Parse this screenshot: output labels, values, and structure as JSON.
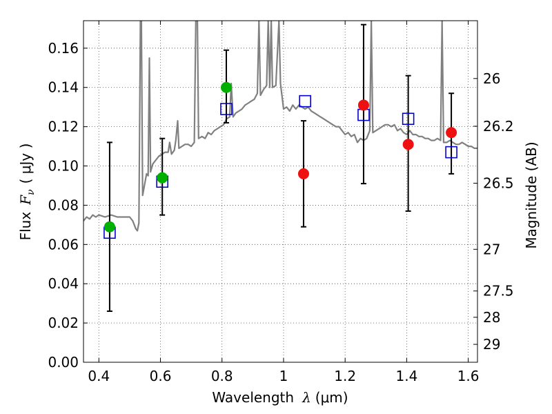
{
  "chart_data": {
    "type": "scatter",
    "xlabel_main": "Wavelength",
    "xlabel_symbol": "λ",
    "xlabel_unit": "(μm)",
    "ylabel_main": "Flux",
    "ylabel_symbol": "F",
    "ylabel_sub": "ν",
    "ylabel_unit": "( μJy )",
    "y2label": "Magnitude (AB)",
    "xlim": [
      0.35,
      1.63
    ],
    "ylim": [
      0.0,
      0.174
    ],
    "xticks": [
      0.4,
      0.6,
      0.8,
      1.0,
      1.2,
      1.4,
      1.6
    ],
    "xtick_labels": [
      "0.4",
      "0.6",
      "0.8",
      "1",
      "1.2",
      "1.4",
      "1.6"
    ],
    "yticks": [
      0.0,
      0.02,
      0.04,
      0.06,
      0.08,
      0.1,
      0.12,
      0.14,
      0.16
    ],
    "ytick_labels": [
      "0.00",
      "0.02",
      "0.04",
      "0.06",
      "0.08",
      "0.10",
      "0.12",
      "0.14",
      "0.16"
    ],
    "y2ticks": [
      {
        "mag": 26,
        "label": "26"
      },
      {
        "mag": 26.2,
        "label": "26.2"
      },
      {
        "mag": 26.5,
        "label": "26.5"
      },
      {
        "mag": 27,
        "label": "27"
      },
      {
        "mag": 27.5,
        "label": "27.5"
      },
      {
        "mag": 28,
        "label": "28"
      },
      {
        "mag": 29,
        "label": "29"
      }
    ],
    "grid": true,
    "colors": {
      "green": "#00b000",
      "red": "#ee1111",
      "blue": "#0000cc",
      "spectrum": "#808080",
      "errorbar": "#000000"
    },
    "measured_points": [
      {
        "x": 0.435,
        "y": 0.069,
        "yerr_low": 0.026,
        "yerr_high": 0.112,
        "color": "green"
      },
      {
        "x": 0.606,
        "y": 0.094,
        "yerr_low": 0.075,
        "yerr_high": 0.114,
        "color": "green"
      },
      {
        "x": 0.814,
        "y": 0.14,
        "yerr_low": 0.122,
        "yerr_high": 0.159,
        "color": "green"
      },
      {
        "x": 1.065,
        "y": 0.096,
        "yerr_low": 0.069,
        "yerr_high": 0.123,
        "color": "red"
      },
      {
        "x": 1.26,
        "y": 0.131,
        "yerr_low": 0.091,
        "yerr_high": 0.172,
        "color": "red"
      },
      {
        "x": 1.405,
        "y": 0.111,
        "yerr_low": 0.077,
        "yerr_high": 0.146,
        "color": "red"
      },
      {
        "x": 1.545,
        "y": 0.117,
        "yerr_low": 0.096,
        "yerr_high": 0.137,
        "color": "red"
      }
    ],
    "model_points": [
      {
        "x": 0.435,
        "y": 0.066
      },
      {
        "x": 0.606,
        "y": 0.092
      },
      {
        "x": 0.814,
        "y": 0.129
      },
      {
        "x": 1.07,
        "y": 0.133
      },
      {
        "x": 1.26,
        "y": 0.126
      },
      {
        "x": 1.405,
        "y": 0.124
      },
      {
        "x": 1.545,
        "y": 0.107
      }
    ],
    "spectrum": [
      [
        0.35,
        0.072
      ],
      [
        0.36,
        0.074
      ],
      [
        0.37,
        0.073
      ],
      [
        0.38,
        0.075
      ],
      [
        0.39,
        0.074
      ],
      [
        0.4,
        0.075
      ],
      [
        0.42,
        0.074
      ],
      [
        0.44,
        0.075
      ],
      [
        0.46,
        0.074
      ],
      [
        0.48,
        0.074
      ],
      [
        0.5,
        0.074
      ],
      [
        0.51,
        0.072
      ],
      [
        0.52,
        0.068
      ],
      [
        0.525,
        0.067
      ],
      [
        0.53,
        0.071
      ],
      [
        0.535,
        0.174
      ],
      [
        0.538,
        0.174
      ],
      [
        0.542,
        0.085
      ],
      [
        0.548,
        0.09
      ],
      [
        0.555,
        0.096
      ],
      [
        0.56,
        0.095
      ],
      [
        0.564,
        0.155
      ],
      [
        0.568,
        0.097
      ],
      [
        0.575,
        0.101
      ],
      [
        0.585,
        0.103
      ],
      [
        0.595,
        0.105
      ],
      [
        0.605,
        0.106
      ],
      [
        0.615,
        0.107
      ],
      [
        0.625,
        0.107
      ],
      [
        0.63,
        0.112
      ],
      [
        0.636,
        0.106
      ],
      [
        0.645,
        0.108
      ],
      [
        0.65,
        0.113
      ],
      [
        0.656,
        0.123
      ],
      [
        0.66,
        0.109
      ],
      [
        0.67,
        0.11
      ],
      [
        0.68,
        0.111
      ],
      [
        0.69,
        0.111
      ],
      [
        0.7,
        0.11
      ],
      [
        0.71,
        0.112
      ],
      [
        0.715,
        0.174
      ],
      [
        0.72,
        0.174
      ],
      [
        0.724,
        0.114
      ],
      [
        0.735,
        0.115
      ],
      [
        0.745,
        0.114
      ],
      [
        0.755,
        0.117
      ],
      [
        0.765,
        0.116
      ],
      [
        0.775,
        0.118
      ],
      [
        0.785,
        0.119
      ],
      [
        0.795,
        0.12
      ],
      [
        0.805,
        0.121
      ],
      [
        0.815,
        0.124
      ],
      [
        0.825,
        0.125
      ],
      [
        0.83,
        0.142
      ],
      [
        0.836,
        0.125
      ],
      [
        0.845,
        0.127
      ],
      [
        0.855,
        0.128
      ],
      [
        0.865,
        0.129
      ],
      [
        0.875,
        0.131
      ],
      [
        0.885,
        0.132
      ],
      [
        0.895,
        0.133
      ],
      [
        0.905,
        0.134
      ],
      [
        0.915,
        0.137
      ],
      [
        0.92,
        0.174
      ],
      [
        0.925,
        0.136
      ],
      [
        0.935,
        0.139
      ],
      [
        0.945,
        0.141
      ],
      [
        0.95,
        0.174
      ],
      [
        0.955,
        0.14
      ],
      [
        0.96,
        0.174
      ],
      [
        0.964,
        0.14
      ],
      [
        0.975,
        0.141
      ],
      [
        0.985,
        0.174
      ],
      [
        0.99,
        0.142
      ],
      [
        1.0,
        0.129
      ],
      [
        1.01,
        0.13
      ],
      [
        1.02,
        0.128
      ],
      [
        1.03,
        0.131
      ],
      [
        1.04,
        0.129
      ],
      [
        1.05,
        0.131
      ],
      [
        1.06,
        0.13
      ],
      [
        1.07,
        0.129
      ],
      [
        1.08,
        0.13
      ],
      [
        1.09,
        0.128
      ],
      [
        1.1,
        0.127
      ],
      [
        1.11,
        0.126
      ],
      [
        1.12,
        0.125
      ],
      [
        1.13,
        0.124
      ],
      [
        1.14,
        0.123
      ],
      [
        1.15,
        0.122
      ],
      [
        1.16,
        0.121
      ],
      [
        1.17,
        0.12
      ],
      [
        1.18,
        0.12
      ],
      [
        1.19,
        0.118
      ],
      [
        1.2,
        0.116
      ],
      [
        1.21,
        0.117
      ],
      [
        1.22,
        0.115
      ],
      [
        1.23,
        0.116
      ],
      [
        1.24,
        0.112
      ],
      [
        1.25,
        0.114
      ],
      [
        1.26,
        0.113
      ],
      [
        1.27,
        0.114
      ],
      [
        1.28,
        0.118
      ],
      [
        1.285,
        0.174
      ],
      [
        1.29,
        0.117
      ],
      [
        1.3,
        0.118
      ],
      [
        1.31,
        0.119
      ],
      [
        1.32,
        0.12
      ],
      [
        1.33,
        0.121
      ],
      [
        1.34,
        0.121
      ],
      [
        1.35,
        0.12
      ],
      [
        1.36,
        0.121
      ],
      [
        1.37,
        0.118
      ],
      [
        1.38,
        0.119
      ],
      [
        1.39,
        0.117
      ],
      [
        1.4,
        0.116
      ],
      [
        1.41,
        0.118
      ],
      [
        1.42,
        0.116
      ],
      [
        1.43,
        0.116
      ],
      [
        1.44,
        0.115
      ],
      [
        1.45,
        0.115
      ],
      [
        1.46,
        0.114
      ],
      [
        1.47,
        0.114
      ],
      [
        1.48,
        0.113
      ],
      [
        1.49,
        0.113
      ],
      [
        1.5,
        0.114
      ],
      [
        1.51,
        0.113
      ],
      [
        1.515,
        0.174
      ],
      [
        1.52,
        0.112
      ],
      [
        1.53,
        0.112
      ],
      [
        1.54,
        0.113
      ],
      [
        1.55,
        0.112
      ],
      [
        1.56,
        0.111
      ],
      [
        1.57,
        0.111
      ],
      [
        1.58,
        0.112
      ],
      [
        1.59,
        0.111
      ],
      [
        1.6,
        0.11
      ],
      [
        1.61,
        0.11
      ],
      [
        1.62,
        0.109
      ],
      [
        1.63,
        0.109
      ]
    ]
  }
}
